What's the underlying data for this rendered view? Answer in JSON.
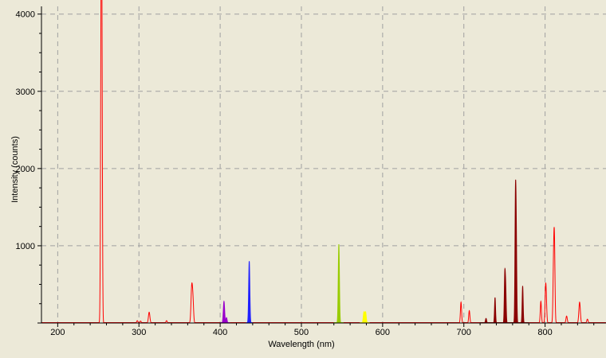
{
  "chart_data": {
    "type": "line",
    "title": "",
    "xlabel": "Wavelength (nm)",
    "ylabel": "Intensity (counts)",
    "xlim": [
      180,
      875
    ],
    "ylim": [
      0,
      4100
    ],
    "x_ticks": [
      200,
      300,
      400,
      500,
      600,
      700,
      800
    ],
    "y_ticks": [
      1000,
      2000,
      3000,
      4000
    ],
    "grid": "dashed",
    "colors": {
      "background": "#ECE9D8",
      "grid": "#A0A0A0",
      "spectrum": "#FF0000",
      "dark_spectrum": "#8B0000",
      "violet": "#9900CC",
      "blue": "#2020FF",
      "green": "#99CC00",
      "yellow": "#FFFF00"
    },
    "series": [
      {
        "peaks": [
          {
            "x": 253.0,
            "y": 1350,
            "w": 0.6
          },
          {
            "x": 253.7,
            "y": 3520,
            "w": 0.6
          },
          {
            "x": 254.5,
            "y": 2700,
            "w": 0.6
          },
          {
            "x": 298.0,
            "y": 30,
            "w": 0.8
          },
          {
            "x": 302.0,
            "y": 25,
            "w": 0.8
          },
          {
            "x": 312.6,
            "y": 140,
            "w": 0.9
          },
          {
            "x": 334.0,
            "y": 30,
            "w": 0.8
          },
          {
            "x": 365.0,
            "y": 460,
            "w": 0.9
          },
          {
            "x": 366.5,
            "y": 260,
            "w": 0.8
          },
          {
            "x": 404.7,
            "y": 280,
            "w": 0.8
          },
          {
            "x": 407.8,
            "y": 70,
            "w": 0.7
          },
          {
            "x": 435.8,
            "y": 800,
            "w": 0.7
          },
          {
            "x": 546.1,
            "y": 1020,
            "w": 0.7
          },
          {
            "x": 577.0,
            "y": 140,
            "w": 0.8
          },
          {
            "x": 579.0,
            "y": 140,
            "w": 0.8
          },
          {
            "x": 696.5,
            "y": 270,
            "w": 0.7
          },
          {
            "x": 706.7,
            "y": 160,
            "w": 0.7
          },
          {
            "x": 727.3,
            "y": 60,
            "w": 0.7
          },
          {
            "x": 738.4,
            "y": 330,
            "w": 0.6
          },
          {
            "x": 750.4,
            "y": 600,
            "w": 0.6
          },
          {
            "x": 751.5,
            "y": 420,
            "w": 0.6
          },
          {
            "x": 763.5,
            "y": 1500,
            "w": 0.6
          },
          {
            "x": 764.5,
            "y": 1050,
            "w": 0.6
          },
          {
            "x": 772.4,
            "y": 480,
            "w": 0.6
          },
          {
            "x": 794.8,
            "y": 280,
            "w": 0.7
          },
          {
            "x": 800.6,
            "y": 400,
            "w": 0.7
          },
          {
            "x": 801.5,
            "y": 220,
            "w": 0.7
          },
          {
            "x": 810.4,
            "y": 650,
            "w": 0.7
          },
          {
            "x": 811.5,
            "y": 990,
            "w": 0.7
          },
          {
            "x": 826.5,
            "y": 90,
            "w": 0.8
          },
          {
            "x": 842.5,
            "y": 270,
            "w": 0.9
          },
          {
            "x": 852.1,
            "y": 50,
            "w": 0.8
          }
        ]
      }
    ],
    "color_bands": [
      {
        "from": 400,
        "to": 412,
        "color": "violet"
      },
      {
        "from": 432,
        "to": 440,
        "color": "blue"
      },
      {
        "from": 540,
        "to": 552,
        "color": "green"
      },
      {
        "from": 572,
        "to": 584,
        "color": "yellow"
      },
      {
        "from": 720,
        "to": 780,
        "color": "dark_spectrum"
      }
    ]
  }
}
